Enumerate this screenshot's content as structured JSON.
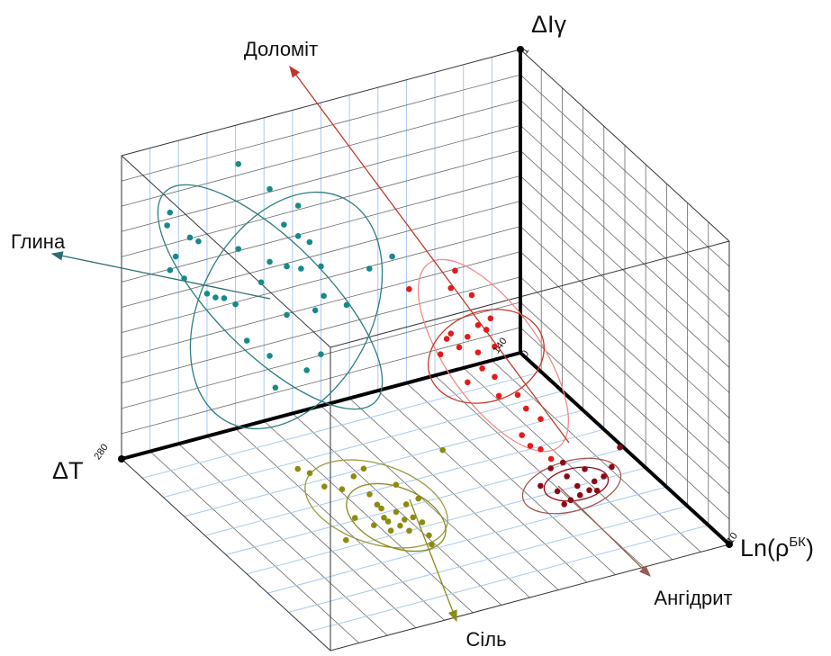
{
  "chart_data": {
    "type": "scatter3d",
    "xlabel": "ΔT",
    "ylabel": "ΔIγ",
    "zlabel": {
      "base": "Ln(ρ",
      "superscript": "БК",
      "close": ")"
    },
    "xlim": [
      140,
      280
    ],
    "xticks": [
      140,
      280
    ],
    "ylim": [
      0,
      1
    ],
    "yticks": [
      0,
      1
    ],
    "zlim": [
      0,
      10
    ],
    "zticks": [
      10
    ],
    "series": [
      {
        "name": "Глина",
        "color": "#17898a",
        "x": [
          239,
          263,
          264,
          256,
          253,
          261,
          263,
          258,
          250,
          244,
          240,
          228,
          218,
          223,
          218,
          228,
          222,
          231,
          217,
          210,
          209,
          212,
          222,
          236,
          228,
          226,
          215,
          210,
          201,
          193,
          185,
          214,
          239,
          247
        ],
        "y": [
          0.87,
          0.77,
          0.73,
          0.67,
          0.65,
          0.62,
          0.58,
          0.54,
          0.47,
          0.44,
          0.41,
          0.76,
          0.68,
          0.63,
          0.58,
          0.52,
          0.49,
          0.46,
          0.47,
          0.46,
          0.36,
          0.32,
          0.33,
          0.28,
          0.21,
          0.1,
          0.13,
          0.17,
          0.31,
          0.41,
          0.43,
          0.55,
          0.59,
          0.45
        ],
        "z": [
          0,
          0,
          0,
          0,
          0,
          0,
          0,
          0,
          0,
          0,
          0,
          0,
          0,
          0,
          0,
          0,
          0,
          0,
          0,
          0,
          0,
          0,
          0,
          0,
          0,
          0,
          0,
          0,
          0,
          0,
          0,
          0,
          0,
          0
        ]
      },
      {
        "name": "Доломіт",
        "color": "#e41a1a",
        "x": [
          182,
          182,
          182,
          182,
          182,
          182,
          182,
          182,
          182,
          182,
          182,
          182,
          182,
          182,
          182,
          182,
          182,
          182,
          182,
          182,
          182,
          182,
          182,
          182,
          182
        ],
        "y": [
          0.54,
          0.51,
          0.47,
          0.34,
          0.49,
          0.43,
          0.36,
          0.32,
          0.22,
          0.3,
          0.34,
          0.41,
          0.3,
          0.21,
          0.31,
          0.26,
          0.32,
          0.3,
          0.31,
          0.2,
          0.19,
          0.21,
          0.21,
          0.44,
          0.29
        ],
        "z": [
          2.6,
          3.4,
          2.4,
          0.4,
          4.3,
          3.7,
          3.2,
          2.4,
          1.9,
          2.8,
          3.7,
          4.5,
          3.9,
          3.2,
          4.5,
          4.7,
          5.6,
          6.0,
          6.7,
          5.8,
          6.2,
          6.7,
          7.2,
          4.1,
          2.2
        ]
      },
      {
        "name": "Сіль",
        "color": "#8c8b0e",
        "x": [
          235,
          233,
          233,
          229,
          222,
          223,
          224,
          226,
          226,
          221,
          224,
          221,
          223,
          218,
          217,
          219,
          221,
          228,
          231,
          234,
          217,
          213,
          211,
          190,
          243,
          224,
          216
        ],
        "y": [
          0,
          0,
          0,
          0,
          0,
          0,
          0,
          0,
          0,
          0,
          0,
          0,
          0,
          0,
          0,
          0,
          0,
          0,
          0,
          0,
          0,
          0,
          0,
          0,
          0,
          0,
          0
        ],
        "z": [
          2.3,
          2.6,
          3.3,
          3.6,
          3.2,
          4.1,
          4.6,
          5.2,
          5.4,
          5.1,
          5.7,
          5.5,
          6.0,
          5.5,
          5.8,
          6.4,
          6.8,
          5.8,
          5.4,
          4.9,
          3.0,
          4.0,
          4.8,
          3.1,
          5.7,
          4.8,
          4.9
        ]
      },
      {
        "name": "Ангідрит",
        "color": "#8b0a16",
        "x": [
          166,
          161,
          164,
          164,
          171,
          157,
          158,
          154,
          149,
          141,
          166,
          162,
          173,
          170,
          174,
          160
        ],
        "y": [
          0,
          0,
          0,
          0,
          0,
          0,
          0,
          0,
          0,
          0,
          0,
          0,
          0,
          0,
          0,
          0
        ],
        "z": [
          5.0,
          4.9,
          5.5,
          6.0,
          6.0,
          5.4,
          6.0,
          5.9,
          5.6,
          4.9,
          6.4,
          6.3,
          6.6,
          6.5,
          5.6,
          6.4
        ]
      }
    ]
  }
}
